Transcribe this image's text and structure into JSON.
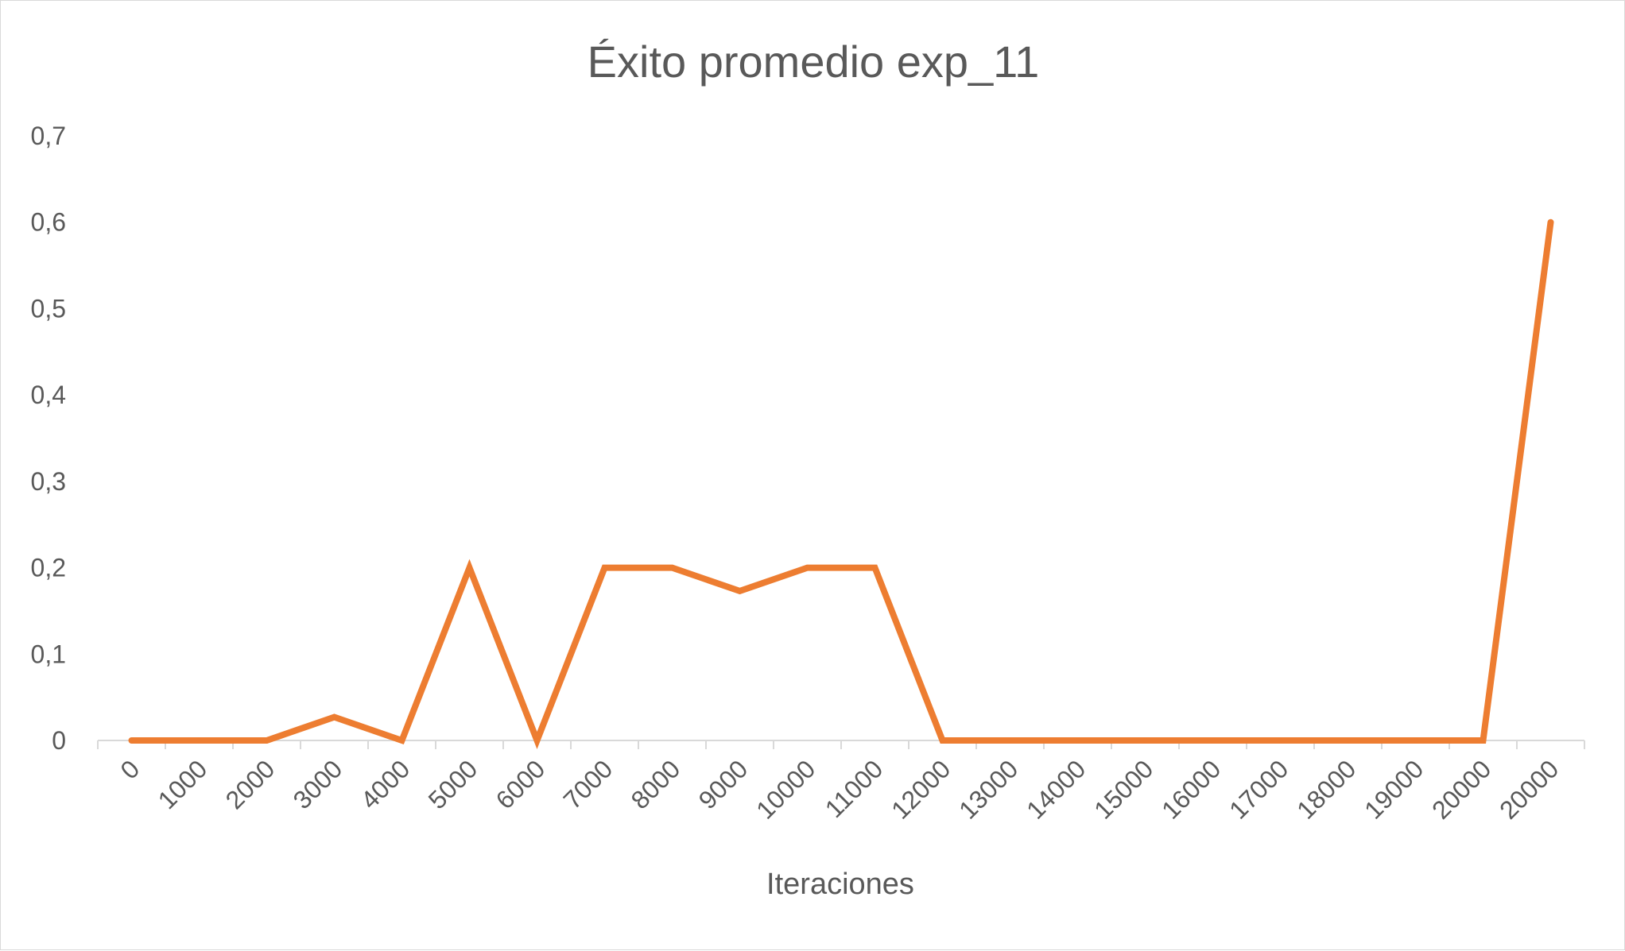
{
  "chart_data": {
    "type": "line",
    "title": "Éxito promedio exp_11",
    "xlabel": "Iteraciones",
    "ylabel": "",
    "categories": [
      "0",
      "1000",
      "2000",
      "3000",
      "4000",
      "5000",
      "6000",
      "7000",
      "8000",
      "9000",
      "10000",
      "11000",
      "12000",
      "13000",
      "14000",
      "15000",
      "16000",
      "17000",
      "18000",
      "19000",
      "20000",
      "20000"
    ],
    "series": [
      {
        "values": [
          0,
          0,
          0,
          0.027,
          0,
          0.2,
          0,
          0.2,
          0.2,
          0.173,
          0.2,
          0.2,
          0,
          0,
          0,
          0,
          0,
          0,
          0,
          0,
          0,
          0.6
        ]
      }
    ],
    "ylim": [
      0,
      0.7
    ],
    "yticks": [
      "0",
      "0,1",
      "0,2",
      "0,3",
      "0,4",
      "0,5",
      "0,6",
      "0,7"
    ],
    "grid": false,
    "legend": "none",
    "line_color": "#ED7D31",
    "axis_color": "#d9d9d9",
    "text_color": "#595959"
  }
}
